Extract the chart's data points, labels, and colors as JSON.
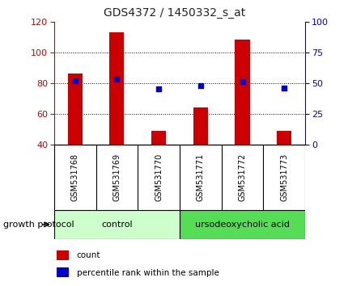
{
  "title": "GDS4372 / 1450332_s_at",
  "samples": [
    "GSM531768",
    "GSM531769",
    "GSM531770",
    "GSM531771",
    "GSM531772",
    "GSM531773"
  ],
  "counts": [
    86,
    113,
    49,
    64,
    108,
    49
  ],
  "percentile_ranks": [
    52,
    53,
    45,
    48,
    51,
    46
  ],
  "ylim_left": [
    40,
    120
  ],
  "ylim_right": [
    0,
    100
  ],
  "yticks_left": [
    40,
    60,
    80,
    100,
    120
  ],
  "yticks_right": [
    0,
    25,
    50,
    75,
    100
  ],
  "bar_color": "#cc0000",
  "dot_color": "#0000cc",
  "bar_bottom": 40,
  "bar_width": 0.35,
  "groups": [
    {
      "label": "control",
      "color": "#ccffcc",
      "count": 3
    },
    {
      "label": "ursodeoxycholic acid",
      "color": "#55dd55",
      "count": 3
    }
  ],
  "group_protocol_label": "growth protocol",
  "bg_color_plot": "#ffffff",
  "tick_label_area_color": "#c8c8c8",
  "left_axis_color": "#cc0000",
  "right_axis_color": "#0000cc",
  "grid_color": "#000000",
  "legend_items": [
    {
      "label": "count",
      "color": "#cc0000"
    },
    {
      "label": "percentile rank within the sample",
      "color": "#0000cc"
    }
  ],
  "fig_width": 4.31,
  "fig_height": 3.54,
  "dpi": 100
}
